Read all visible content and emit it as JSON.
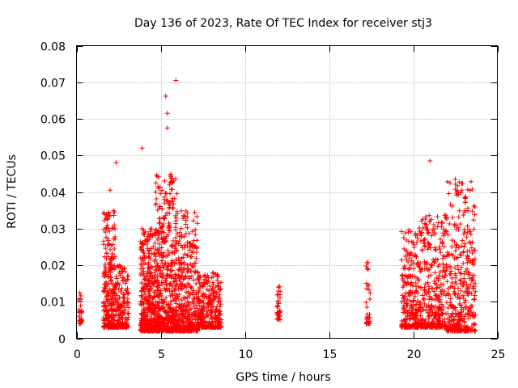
{
  "chart_data": {
    "type": "scatter",
    "title": "Day 136 of 2023, Rate Of TEC Index for receiver stj3",
    "xlabel": "GPS time / hours",
    "ylabel": "ROTI / TECUs",
    "xlim": [
      0,
      25
    ],
    "ylim": [
      0,
      0.08
    ],
    "x_ticks": [
      "0",
      "5",
      "10",
      "15",
      "20",
      "25"
    ],
    "y_ticks": [
      "0",
      "0.01",
      "0.02",
      "0.03",
      "0.04",
      "0.05",
      "0.06",
      "0.07",
      "0.08"
    ],
    "grid": true,
    "marker": "+",
    "color": "#ff0000",
    "clusters": [
      {
        "x_range": [
          0.15,
          0.35
        ],
        "y_range": [
          0.004,
          0.013
        ],
        "count": 30
      },
      {
        "x_range": [
          1.6,
          2.3
        ],
        "y_range": [
          0.003,
          0.035
        ],
        "count": 260
      },
      {
        "x_range": [
          2.3,
          3.1
        ],
        "y_range": [
          0.003,
          0.02
        ],
        "count": 160
      },
      {
        "x_range": [
          3.8,
          4.7
        ],
        "y_range": [
          0.002,
          0.03
        ],
        "count": 420
      },
      {
        "x_range": [
          4.7,
          6.0
        ],
        "y_range": [
          0.002,
          0.045
        ],
        "count": 560
      },
      {
        "x_range": [
          6.0,
          7.2
        ],
        "y_range": [
          0.002,
          0.035
        ],
        "count": 360
      },
      {
        "x_range": [
          7.2,
          8.6
        ],
        "y_range": [
          0.003,
          0.018
        ],
        "count": 300
      },
      {
        "x_range": [
          11.9,
          12.1
        ],
        "y_range": [
          0.005,
          0.015
        ],
        "count": 30
      },
      {
        "x_range": [
          17.2,
          17.45
        ],
        "y_range": [
          0.004,
          0.021
        ],
        "count": 35
      },
      {
        "x_range": [
          19.3,
          20.3
        ],
        "y_range": [
          0.003,
          0.03
        ],
        "count": 220
      },
      {
        "x_range": [
          20.3,
          22.0
        ],
        "y_range": [
          0.003,
          0.034
        ],
        "count": 360
      },
      {
        "x_range": [
          22.0,
          23.7
        ],
        "y_range": [
          0.002,
          0.043
        ],
        "count": 380
      }
    ],
    "notable_points": [
      {
        "x": 5.9,
        "y": 0.0705
      },
      {
        "x": 5.3,
        "y": 0.0662
      },
      {
        "x": 5.4,
        "y": 0.0615
      },
      {
        "x": 5.4,
        "y": 0.0575
      },
      {
        "x": 3.9,
        "y": 0.052
      },
      {
        "x": 2.35,
        "y": 0.048
      },
      {
        "x": 21.0,
        "y": 0.0485
      },
      {
        "x": 22.5,
        "y": 0.0435
      },
      {
        "x": 22.9,
        "y": 0.0405
      },
      {
        "x": 2.0,
        "y": 0.0405
      }
    ]
  }
}
